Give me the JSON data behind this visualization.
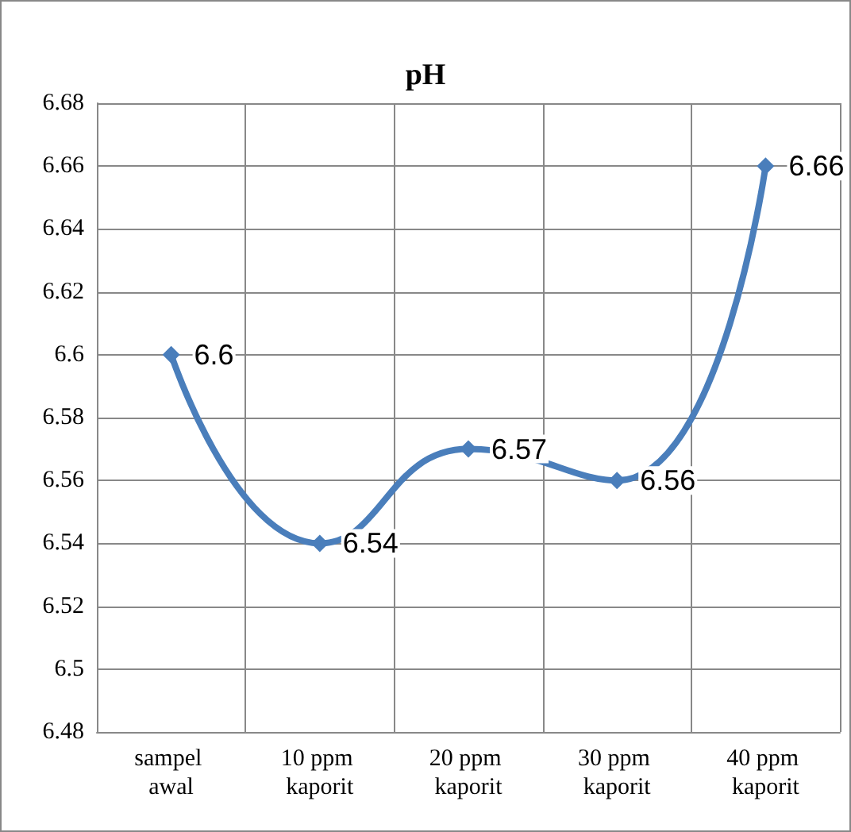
{
  "chart_data": {
    "type": "line",
    "title": "pH",
    "categories": [
      "sampel awal",
      "10 ppm kaporit",
      "20 ppm kaporit",
      "30 ppm kaporit",
      "40 ppm kaporit"
    ],
    "series": [
      {
        "color": "#4a7ebb",
        "values": [
          6.6,
          6.54,
          6.57,
          6.56,
          6.66
        ]
      }
    ],
    "ylim": [
      6.48,
      6.68
    ],
    "yticks": [
      6.48,
      6.5,
      6.52,
      6.54,
      6.56,
      6.58,
      6.6,
      6.62,
      6.64,
      6.66,
      6.68
    ],
    "grid": true,
    "marker": "diamond",
    "line_style": "solid",
    "data_labels": true
  }
}
